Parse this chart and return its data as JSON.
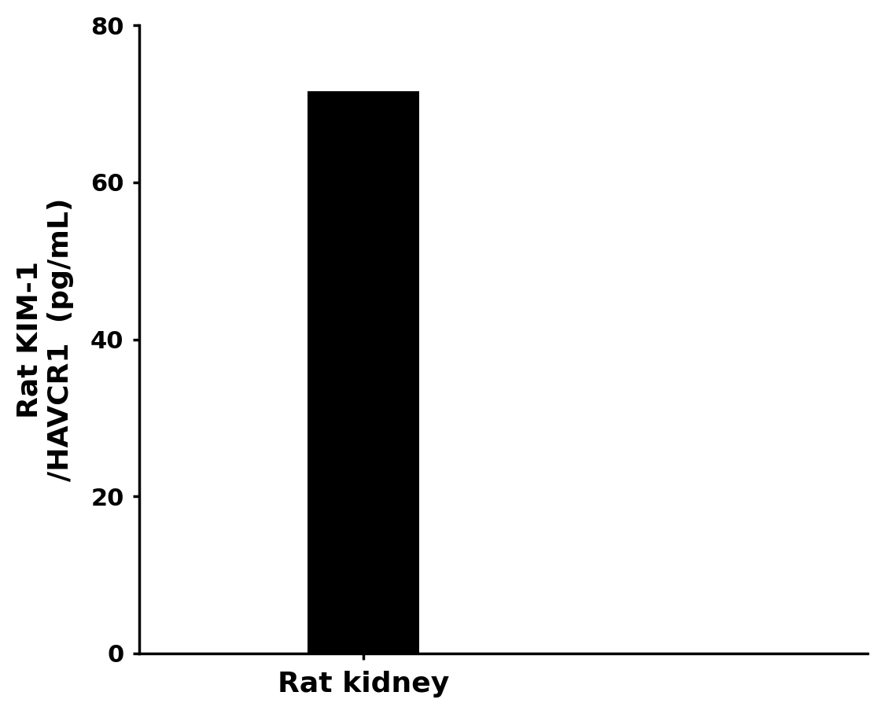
{
  "categories": [
    "Rat kidney"
  ],
  "values": [
    71.6
  ],
  "bar_color": "#000000",
  "bar_width": 0.4,
  "ylabel_line1": "Rat KIM-1",
  "ylabel_line2": "/HAVCR1  (pg/mL)",
  "xlabel": "Rat kidney",
  "ylim": [
    0,
    80
  ],
  "yticks": [
    0,
    20,
    40,
    60,
    80
  ],
  "xlim": [
    -0.8,
    1.8
  ],
  "background_color": "#ffffff",
  "tick_fontsize": 22,
  "label_fontsize": 26,
  "xlabel_fontsize": 26,
  "spine_linewidth": 2.5
}
